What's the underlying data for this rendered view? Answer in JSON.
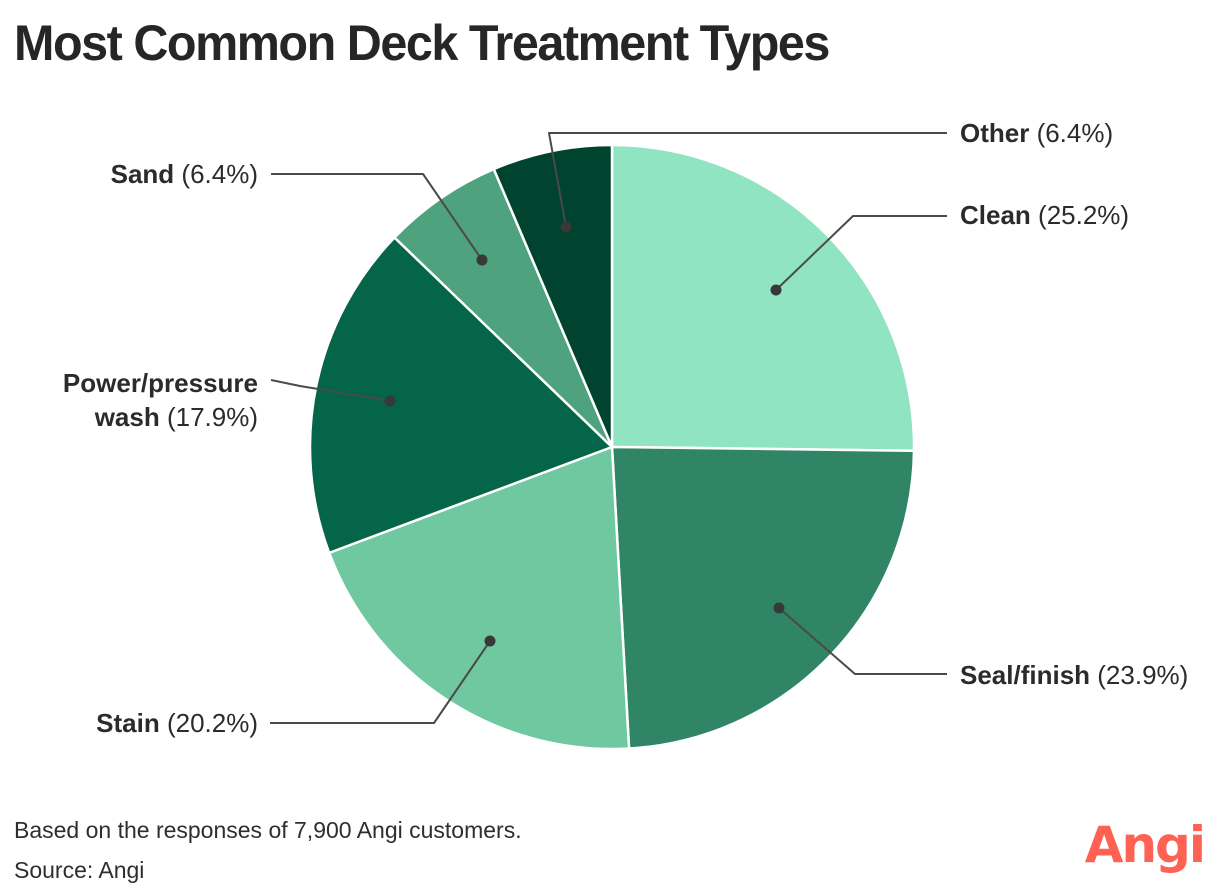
{
  "title": "Most Common Deck Treatment Types",
  "chart_data": {
    "type": "pie",
    "title": "Most Common Deck Treatment Types",
    "start_angle_deg": 0,
    "direction": "clockwise",
    "units": "%",
    "segments": [
      {
        "label": "Clean",
        "value": 25.2,
        "color": "#90E4C1"
      },
      {
        "label": "Seal/finish",
        "value": 23.9,
        "color": "#2F8566"
      },
      {
        "label": "Stain",
        "value": 20.2,
        "color": "#6FC8A0"
      },
      {
        "label": "Power/pressure wash",
        "value": 17.9,
        "color": "#056549"
      },
      {
        "label": "Sand",
        "value": 6.4,
        "color": "#4FA27E"
      },
      {
        "label": "Other",
        "value": 6.4,
        "color": "#00432E"
      }
    ],
    "legend_position": "callout-labels",
    "slice_border_color": "#ffffff",
    "leader_line_color": "#4a4a4a"
  },
  "footer": {
    "note": "Based on the responses of 7,900 Angi customers.",
    "source": "Source: Angi"
  },
  "brand": {
    "name": "Angi",
    "color": "#FF6153"
  }
}
